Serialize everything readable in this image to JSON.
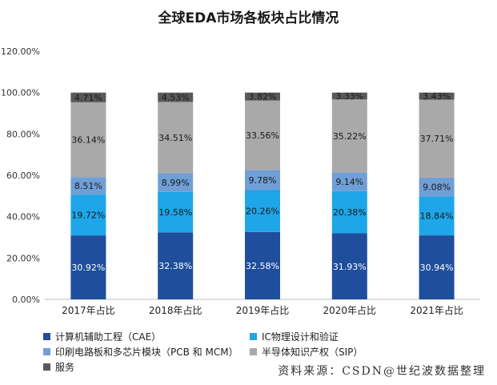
{
  "chart_data": {
    "type": "bar",
    "stacked": true,
    "title": "全球EDA市场各板块占比情况",
    "categories": [
      "2017年占比",
      "2018年占比",
      "2019年占比",
      "2020年占比",
      "2021年占比"
    ],
    "ylim": [
      0,
      120
    ],
    "yticks": [
      "0.00%",
      "20.00%",
      "40.00%",
      "60.00%",
      "80.00%",
      "100.00%",
      "120.00%"
    ],
    "ytick_values": [
      0,
      20,
      40,
      60,
      80,
      100,
      120
    ],
    "series": [
      {
        "name": "计算机辅助工程（CAE）",
        "color": "#1f4e9c",
        "label_color": "#ffffff",
        "values": [
          30.92,
          32.38,
          32.58,
          31.93,
          30.94
        ],
        "labels": [
          "30.92%",
          "32.38%",
          "32.58%",
          "31.93%",
          "30.94%"
        ]
      },
      {
        "name": "IC物理设计和验证",
        "color": "#1ea6e8",
        "label_color": "#1a1a1a",
        "values": [
          19.72,
          19.58,
          20.26,
          20.38,
          18.84
        ],
        "labels": [
          "19.72%",
          "19.58%",
          "20.26%",
          "20.38%",
          "18.84%"
        ]
      },
      {
        "name": "印刷电路板和多芯片模块（PCB 和 MCM）",
        "color": "#6f9fd6",
        "label_color": "#1a1a1a",
        "values": [
          8.51,
          8.99,
          9.78,
          9.14,
          9.08
        ],
        "labels": [
          "8.51%",
          "8.99%",
          "9.78%",
          "9.14%",
          "9.08%"
        ]
      },
      {
        "name": "半导体知识产权（SIP）",
        "color": "#a9a9a9",
        "label_color": "#1a1a1a",
        "values": [
          36.14,
          34.51,
          33.56,
          35.22,
          37.71
        ],
        "labels": [
          "36.14%",
          "34.51%",
          "33.56%",
          "35.22%",
          "37.71%"
        ]
      },
      {
        "name": "服务",
        "color": "#595959",
        "label_color": "#1a1a1a",
        "values": [
          4.71,
          4.53,
          3.82,
          3.33,
          3.43
        ],
        "labels": [
          "4.71%",
          "4.53%",
          "3.82%",
          "3.33%",
          "3.43%"
        ]
      }
    ],
    "legend_position": "bottom",
    "grid": false
  },
  "source_text": "资料来源：CSDN@世纪波数据整理"
}
